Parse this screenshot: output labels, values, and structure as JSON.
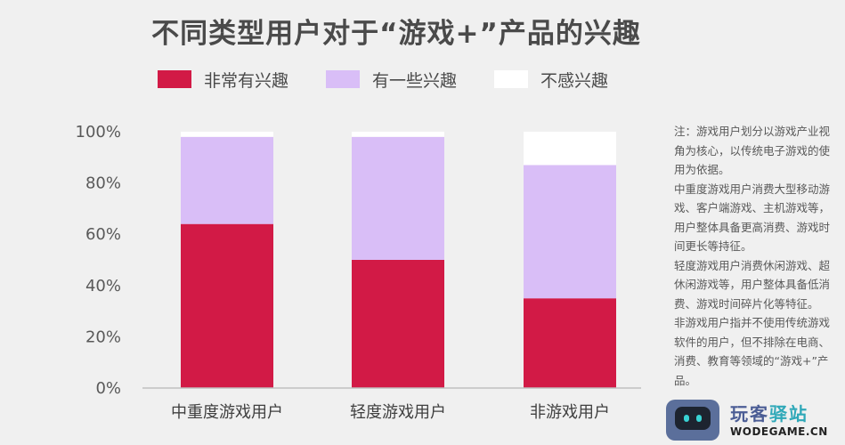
{
  "title": "不同类型用户对于“游戏+”产品的兴趣",
  "legend": [
    {
      "label": "非常有兴趣",
      "color": "#d21a46"
    },
    {
      "label": "有一些兴趣",
      "color": "#d9bef7"
    },
    {
      "label": "不感兴趣",
      "color": "#ffffff"
    }
  ],
  "chart_data": {
    "type": "bar",
    "stacked": true,
    "title": "不同类型用户对于“游戏+”产品的兴趣",
    "categories": [
      "中重度游戏用户",
      "轻度游戏用户",
      "非游戏用户"
    ],
    "series": [
      {
        "name": "非常有兴趣",
        "color": "#d21a46",
        "values": [
          64,
          50,
          35
        ]
      },
      {
        "name": "有一些兴趣",
        "color": "#d9bef7",
        "values": [
          34,
          48,
          52
        ]
      },
      {
        "name": "不感兴趣",
        "color": "#ffffff",
        "values": [
          2,
          2,
          13
        ]
      }
    ],
    "ylim": [
      0,
      100
    ],
    "yticks": [
      "0%",
      "20%",
      "40%",
      "60%",
      "80%",
      "100%"
    ],
    "yticks_values": [
      0,
      20,
      40,
      60,
      80,
      100
    ],
    "grid": false,
    "legend_position": "top"
  },
  "note": [
    "注：游戏用户划分以游戏产业视角为核心，以传统电子游戏的使用为依据。",
    "中重度游戏用户消费大型移动游戏、客户端游戏、主机游戏等，用户整体具备更高消费、游戏时间更长等持征。",
    "轻度游戏用户消费休闲游戏、超休闲游戏等，用户整体具备低消费、游戏时间碎片化等特征。",
    "非游戏用户指并不使用传统游戏软件的用户，但不排除在电商、消费、教育等领域的“游戏+”产品。"
  ],
  "watermark": {
    "cn_part1": "玩客",
    "cn_part2": "驿站",
    "en": "WODEGAME.CN",
    "icon": "robot-icon"
  }
}
